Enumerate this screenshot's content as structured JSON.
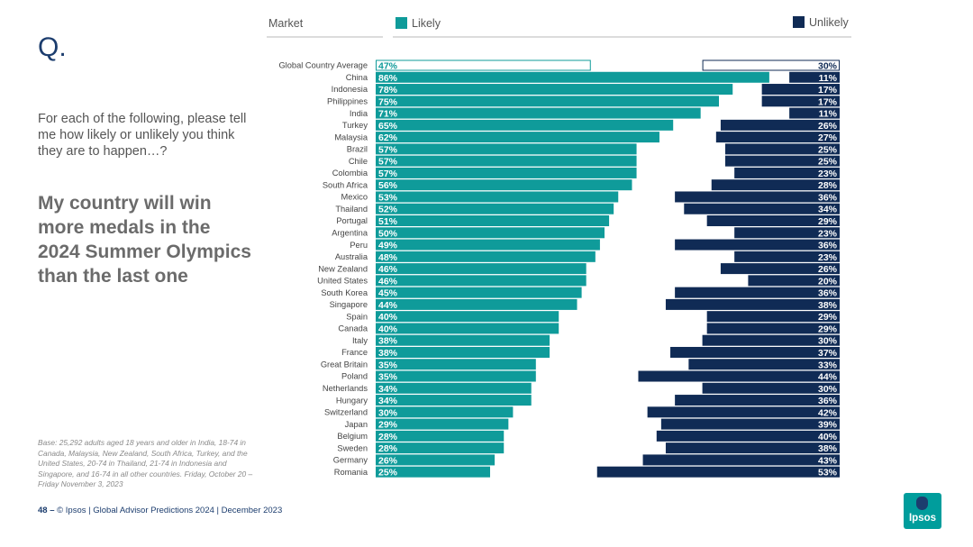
{
  "slide": {
    "q_label": "Q.",
    "question": "For each of the following, please tell me how likely or unlikely you think they are to happen…?",
    "statement": "My country will win more medals in the 2024 Summer Olympics than the last one",
    "base_note": "Base: 25,292 adults aged 18 years and older in India, 18-74 in Canada, Malaysia, New Zealand, South Africa, Turkey, and the United States, 20-74 in Thailand, 21-74 in Indonesia and Singapore, and 16-74 in all other countries. Friday, October 20 – Friday November 3, 2023",
    "footer_page": "48",
    "footer_dash": "–",
    "footer_text": "© Ipsos | Global Advisor Predictions 2024 | December 2023",
    "logo_text": "Ipsos"
  },
  "colors": {
    "likely": "#0f9b9a",
    "unlikely": "#102b55",
    "brand_teal": "#009d9c",
    "brand_navy": "#1c3d6e"
  },
  "chart_data": {
    "type": "bar",
    "header": {
      "market": "Market",
      "likely": "Likely",
      "unlikely": "Unlikely"
    },
    "categories": [
      "Global Country Average",
      "China",
      "Indonesia",
      "Philippines",
      "India",
      "Turkey",
      "Malaysia",
      "Brazil",
      "Chile",
      "Colombia",
      "South Africa",
      "Mexico",
      "Thailand",
      "Portugal",
      "Argentina",
      "Peru",
      "Australia",
      "New Zealand",
      "United States",
      "South Korea",
      "Singapore",
      "Spain",
      "Canada",
      "Italy",
      "France",
      "Great Britain",
      "Poland",
      "Netherlands",
      "Hungary",
      "Switzerland",
      "Japan",
      "Belgium",
      "Sweden",
      "Germany",
      "Romania"
    ],
    "series": [
      {
        "name": "Likely",
        "values": [
          47,
          86,
          78,
          75,
          71,
          65,
          62,
          57,
          57,
          57,
          56,
          53,
          52,
          51,
          50,
          49,
          48,
          46,
          46,
          45,
          44,
          40,
          40,
          38,
          38,
          35,
          35,
          34,
          34,
          30,
          29,
          28,
          28,
          26,
          25
        ]
      },
      {
        "name": "Unlikely",
        "values": [
          30,
          11,
          17,
          17,
          11,
          26,
          27,
          25,
          25,
          23,
          28,
          36,
          34,
          29,
          23,
          36,
          23,
          26,
          20,
          36,
          38,
          29,
          29,
          30,
          37,
          33,
          44,
          30,
          36,
          42,
          39,
          40,
          38,
          43,
          53
        ]
      }
    ],
    "labels_likely": [
      "47%",
      "86%",
      "78%",
      "75%",
      "71%",
      "65%",
      "62%",
      "57%",
      "57%",
      "57%",
      "56%",
      "53%",
      "52%",
      "51%",
      "50%",
      "49%",
      "48%",
      "46%",
      "46%",
      "45%",
      "44%",
      "40%",
      "40%",
      "38%",
      "38%",
      "35%",
      "35%",
      "34%",
      "34%",
      "30%",
      "29%",
      "28%",
      "28%",
      "26%",
      "25%"
    ],
    "labels_unlikely": [
      "30%",
      "11%",
      "17%",
      "17%",
      "11%",
      "26%",
      "27%",
      "25%",
      "25%",
      "23%",
      "28%",
      "36%",
      "34%",
      "29%",
      "23%",
      "36%",
      "23%",
      "26%",
      "20%",
      "36%",
      "38%",
      "29%",
      "29%",
      "30%",
      "37%",
      "33%",
      "44%",
      "30%",
      "36%",
      "42%",
      "39%",
      "40%",
      "38%",
      "43%",
      "53%"
    ],
    "xlim": [
      0,
      100
    ],
    "highlight_first_row": true,
    "grid": false
  }
}
